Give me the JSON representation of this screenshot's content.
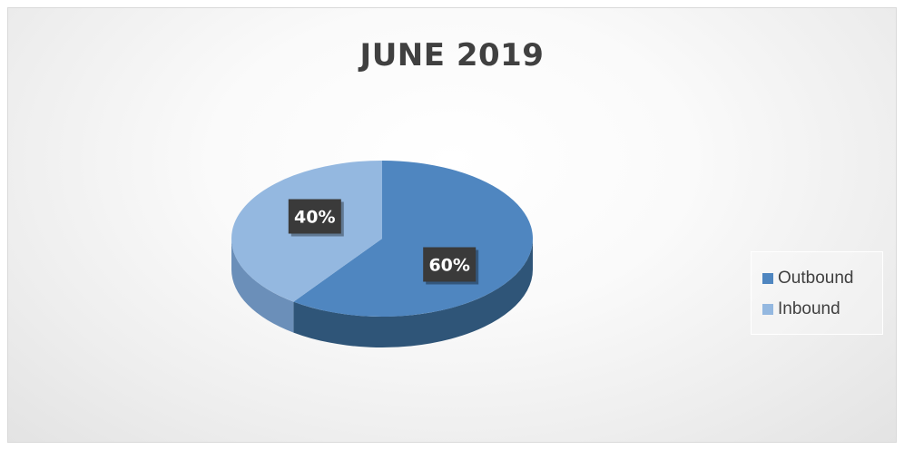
{
  "chart_data": {
    "type": "pie",
    "title": "JUNE 2019",
    "categories": [
      "Outbound",
      "Inbound"
    ],
    "values": [
      60,
      40
    ],
    "data_labels": [
      "60%",
      "40%"
    ],
    "colors": [
      "#4f86c0",
      "#94b8e0"
    ],
    "side_colors": [
      "#2f5578",
      "#6b8fb9"
    ],
    "legend_position": "right",
    "style": "3d"
  }
}
